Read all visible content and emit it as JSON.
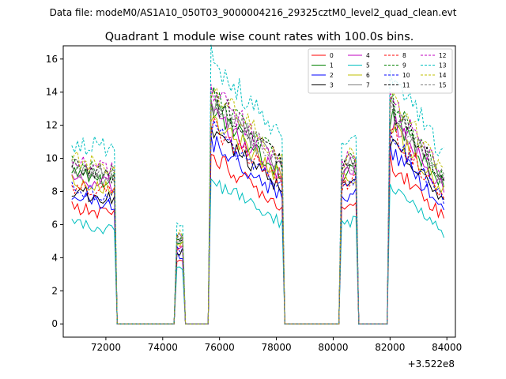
{
  "chart_data": {
    "type": "line",
    "suptitle": "Data file: modeM0/AS1A10_050T03_9000004216_29325cztM0_level2_quad_clean.evt",
    "title": "Quadrant 1 module wise count rates with 100.0s bins.",
    "xlabel": "",
    "ylabel": "",
    "x_offset_label": "+3.522e8",
    "xlim": [
      70500,
      84300
    ],
    "ylim": [
      -0.8,
      16.8
    ],
    "x_ticks": [
      72000,
      74000,
      76000,
      78000,
      80000,
      82000,
      84000
    ],
    "y_ticks": [
      0,
      2,
      4,
      6,
      8,
      10,
      12,
      14,
      16
    ],
    "x_tick_labels": [
      "72000",
      "74000",
      "76000",
      "78000",
      "80000",
      "82000",
      "84000"
    ],
    "y_tick_labels": [
      "0",
      "2",
      "4",
      "6",
      "8",
      "10",
      "12",
      "14",
      "16"
    ],
    "legend_position": "top-right",
    "segments": [
      {
        "start": 70800,
        "end": 72300,
        "peak_factor": 1.0,
        "decay": 0.05
      },
      {
        "start": 74500,
        "end": 74700,
        "peak_factor": 0.55,
        "decay": 0.0
      },
      {
        "start": 75700,
        "end": 78200,
        "peak_factor": 1.45,
        "decay": 0.3
      },
      {
        "start": 80250,
        "end": 80850,
        "peak_factor": 1.0,
        "decay": -0.05
      },
      {
        "start": 82000,
        "end": 83950,
        "peak_factor": 1.4,
        "decay": 0.35
      }
    ],
    "series": [
      {
        "name": "0",
        "color": "#ff0000",
        "dash": false,
        "base": 7.0
      },
      {
        "name": "1",
        "color": "#008000",
        "dash": false,
        "base": 9.0
      },
      {
        "name": "2",
        "color": "#0000ff",
        "dash": false,
        "base": 7.6
      },
      {
        "name": "3",
        "color": "#000000",
        "dash": false,
        "base": 8.0
      },
      {
        "name": "4",
        "color": "#c000c0",
        "dash": false,
        "base": 8.8
      },
      {
        "name": "5",
        "color": "#00bfbf",
        "dash": false,
        "base": 6.0
      },
      {
        "name": "6",
        "color": "#bfbf00",
        "dash": false,
        "base": 8.6
      },
      {
        "name": "7",
        "color": "#808080",
        "dash": false,
        "base": 9.3
      },
      {
        "name": "8",
        "color": "#ff0000",
        "dash": true,
        "base": 8.3
      },
      {
        "name": "9",
        "color": "#008000",
        "dash": true,
        "base": 9.6
      },
      {
        "name": "10",
        "color": "#0000ff",
        "dash": true,
        "base": 8.1
      },
      {
        "name": "11",
        "color": "#000000",
        "dash": true,
        "base": 9.5
      },
      {
        "name": "12",
        "color": "#c000c0",
        "dash": true,
        "base": 9.7
      },
      {
        "name": "13",
        "color": "#00bfbf",
        "dash": true,
        "base": 11.0
      },
      {
        "name": "14",
        "color": "#bfbf00",
        "dash": true,
        "base": 9.9
      },
      {
        "name": "15",
        "color": "#808080",
        "dash": true,
        "base": 9.4
      }
    ]
  }
}
